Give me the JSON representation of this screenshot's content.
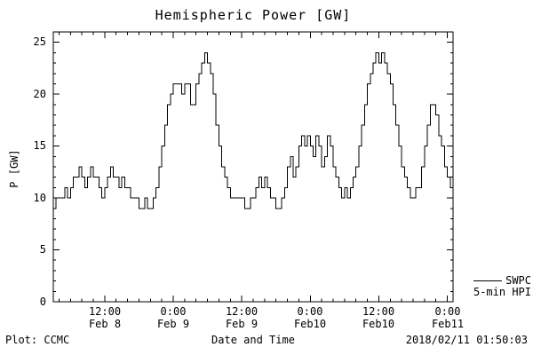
{
  "title": "Hemispheric Power [GW]",
  "y_axis_label": "P [GW]",
  "footer": {
    "left": "Plot: CCMC",
    "center": "Date and Time",
    "right": "2018/02/11 01:50:03"
  },
  "legend": {
    "name": "SWPC",
    "desc": "5-min HPI"
  },
  "chart_data": {
    "type": "line",
    "line_style": "step",
    "title": "Hemispheric Power [GW]",
    "xlabel": "Date and Time",
    "ylabel": "P [GW]",
    "ylim": [
      0,
      25
    ],
    "y_display_max": 26,
    "grid": false,
    "legend_position": "right-outside-bottom",
    "yticks": [
      0,
      5,
      10,
      15,
      20,
      25
    ],
    "x_start": "2018-02-08 03:00",
    "x_end": "2018-02-11 01:00",
    "x_range_hours": 70,
    "x_interval_hours": 0.5,
    "xtick_hours": [
      9,
      21,
      33,
      45,
      57,
      69
    ],
    "xtick_times": [
      "12:00",
      "0:00",
      "12:00",
      "0:00",
      "12:00",
      "0:00"
    ],
    "xtick_dates": [
      "Feb 8",
      "Feb 9",
      "Feb 9",
      "Feb10",
      "Feb10",
      "Feb11"
    ],
    "series": [
      {
        "name": "SWPC 5-min HPI",
        "color": "#000000",
        "values": [
          9,
          10,
          10,
          10,
          11,
          10,
          11,
          12,
          12,
          13,
          12,
          11,
          12,
          13,
          12,
          12,
          11,
          10,
          11,
          12,
          13,
          12,
          12,
          11,
          12,
          11,
          11,
          10,
          10,
          10,
          9,
          9,
          10,
          9,
          9,
          10,
          11,
          13,
          15,
          17,
          19,
          20,
          21,
          21,
          21,
          20,
          21,
          21,
          19,
          19,
          21,
          22,
          23,
          24,
          23,
          22,
          20,
          17,
          15,
          13,
          12,
          11,
          10,
          10,
          10,
          10,
          10,
          9,
          9,
          10,
          10,
          11,
          12,
          11,
          12,
          11,
          10,
          10,
          9,
          9,
          10,
          11,
          13,
          14,
          12,
          13,
          15,
          16,
          15,
          16,
          15,
          14,
          16,
          15,
          13,
          14,
          16,
          15,
          13,
          12,
          11,
          10,
          11,
          10,
          11,
          12,
          13,
          15,
          17,
          19,
          21,
          22,
          23,
          24,
          23,
          24,
          23,
          22,
          21,
          19,
          17,
          15,
          13,
          12,
          11,
          10,
          10,
          11,
          11,
          13,
          15,
          17,
          19,
          19,
          18,
          16,
          15,
          13,
          12,
          11,
          11
        ]
      }
    ]
  }
}
